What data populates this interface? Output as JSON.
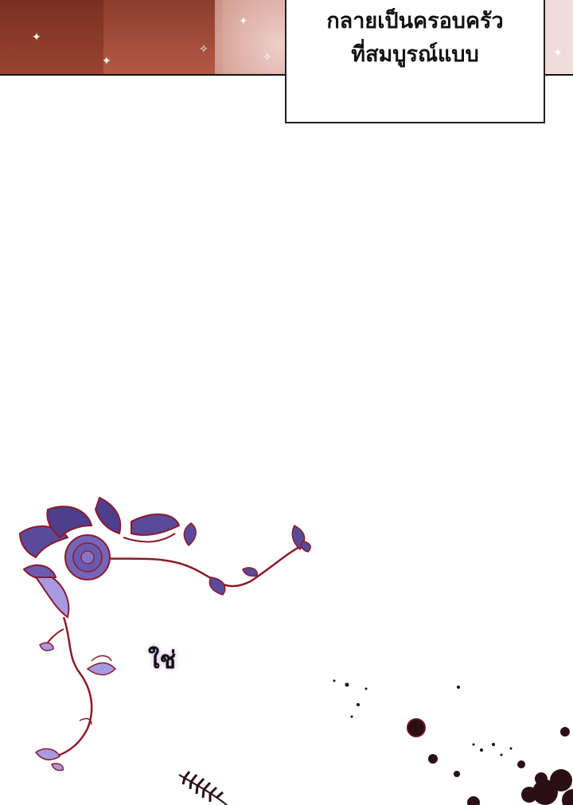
{
  "caption": {
    "line1": "กลายเป็นครอบครัว",
    "line2": "ที่สมบูรณ์แบบ"
  },
  "dialogue": {
    "text": "ใช่"
  },
  "icons": {
    "ornament": "floral-ornament-icon",
    "splatter": "ink-splatter-icon",
    "fern": "fern-leaf-icon"
  },
  "colors": {
    "floral_outline": "#8b1a2a",
    "floral_fill": "#5a4a9a",
    "floral_light": "#a89ae0",
    "ink": "#111111"
  }
}
